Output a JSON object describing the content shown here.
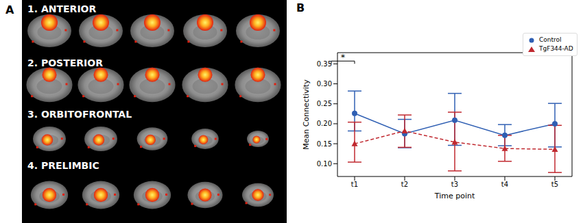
{
  "panel_a": {
    "label": "A",
    "rows": [
      "1. ANTERIOR",
      "2. POSTERIOR",
      "3. ORBITOFRONTAL",
      "4. PRELIMBIC"
    ]
  },
  "panel_b": {
    "label": "B"
  },
  "chart_data": {
    "type": "line",
    "x_label": "Time point",
    "y_label": "Mean Connectivity",
    "categories": [
      "t1",
      "t2",
      "t3",
      "t4",
      "t5"
    ],
    "ylim": [
      0.068,
      0.378
    ],
    "yticks": [
      {
        "value": 0.1,
        "label": "0.10"
      },
      0.15,
      {
        "value": 0.2,
        "label": "0.20"
      },
      0.25,
      {
        "value": 0.3,
        "label": "0.30"
      },
      0.35
    ],
    "grid": false,
    "legend": "upper right",
    "series": [
      {
        "name": "Control",
        "color": "#2f5fb3",
        "marker": "circle",
        "line_style": "solid",
        "values": [
          0.226,
          0.175,
          0.209,
          0.171,
          0.2
        ],
        "errors": [
          [
            0.044,
            0.056
          ],
          [
            0.035,
            0.036
          ],
          [
            0.063,
            0.067
          ],
          [
            0.026,
            0.027
          ],
          [
            0.058,
            0.051
          ]
        ]
      },
      {
        "name": "TgF344-AD",
        "color": "#c0282f",
        "marker": "triangle",
        "line_style": "dashed",
        "values": [
          0.15,
          0.182,
          0.154,
          0.138,
          0.136
        ],
        "errors": [
          [
            0.046,
            0.054
          ],
          [
            0.041,
            0.04
          ],
          [
            0.072,
            0.075
          ],
          [
            0.032,
            0.033
          ],
          [
            0.058,
            0.06
          ]
        ]
      }
    ],
    "annotations": [
      {
        "text": "*",
        "x": "t1",
        "y": 0.357
      }
    ]
  }
}
